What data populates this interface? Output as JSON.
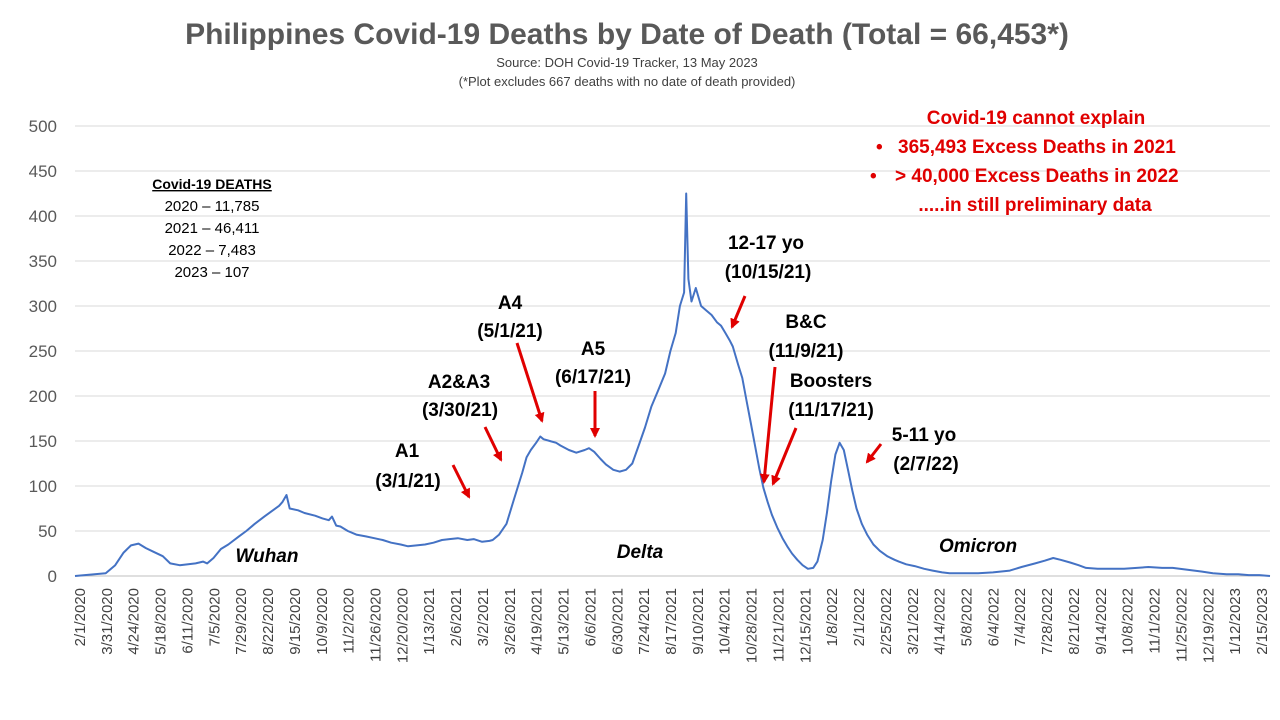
{
  "chart_data": {
    "type": "line",
    "title": "Philippines Covid-19 Deaths by Date of Death (Total = 66,453*)",
    "subtitle_1": "Source: DOH Covid-19 Tracker, 13 May 2023",
    "subtitle_2": "(*Plot excludes 667 deaths with no date of death provided)",
    "xlabel": "",
    "ylabel": "",
    "ylim": [
      0,
      500
    ],
    "yticks": [
      0,
      50,
      100,
      150,
      200,
      250,
      300,
      350,
      400,
      450,
      500
    ],
    "xlim": [
      "2020-02-01",
      "2023-03-07"
    ],
    "xticks": [
      "2/1/2020",
      "3/31/2020",
      "4/24/2020",
      "5/18/2020",
      "6/11/2020",
      "7/5/2020",
      "7/29/2020",
      "8/22/2020",
      "9/15/2020",
      "10/9/2020",
      "11/2/2020",
      "11/26/2020",
      "12/20/2020",
      "1/13/2021",
      "2/6/2021",
      "3/2/2021",
      "3/26/2021",
      "4/19/2021",
      "5/13/2021",
      "6/6/2021",
      "6/30/2021",
      "7/24/2021",
      "8/17/2021",
      "9/10/2021",
      "10/4/2021",
      "10/28/2021",
      "11/21/2021",
      "12/15/2021",
      "1/8/2022",
      "2/1/2022",
      "2/25/2022",
      "3/21/2022",
      "4/14/2022",
      "5/8/2022",
      "6/4/2022",
      "7/4/2022",
      "7/28/2022",
      "8/21/2022",
      "9/14/2022",
      "10/8/2022",
      "11/1/2022",
      "11/25/2022",
      "12/19/2022",
      "1/12/2023",
      "2/15/2023"
    ],
    "grid": true,
    "line_color": "#4472c4",
    "series": [
      {
        "points": [
          [
            "2020-02-01",
            0
          ],
          [
            "2020-03-01",
            3
          ],
          [
            "2020-03-10",
            12
          ],
          [
            "2020-03-18",
            26
          ],
          [
            "2020-03-25",
            34
          ],
          [
            "2020-04-01",
            36
          ],
          [
            "2020-04-08",
            31
          ],
          [
            "2020-04-15",
            27
          ],
          [
            "2020-04-24",
            22
          ],
          [
            "2020-05-01",
            14
          ],
          [
            "2020-05-10",
            12
          ],
          [
            "2020-05-18",
            13
          ],
          [
            "2020-05-25",
            14
          ],
          [
            "2020-06-01",
            16
          ],
          [
            "2020-06-05",
            14
          ],
          [
            "2020-06-11",
            20
          ],
          [
            "2020-06-18",
            30
          ],
          [
            "2020-06-25",
            35
          ],
          [
            "2020-07-05",
            44
          ],
          [
            "2020-07-12",
            50
          ],
          [
            "2020-07-20",
            58
          ],
          [
            "2020-07-29",
            66
          ],
          [
            "2020-08-05",
            72
          ],
          [
            "2020-08-12",
            78
          ],
          [
            "2020-08-15",
            82
          ],
          [
            "2020-08-19",
            90
          ],
          [
            "2020-08-22",
            75
          ],
          [
            "2020-08-30",
            73
          ],
          [
            "2020-09-05",
            70
          ],
          [
            "2020-09-15",
            67
          ],
          [
            "2020-09-22",
            64
          ],
          [
            "2020-09-28",
            62
          ],
          [
            "2020-10-01",
            66
          ],
          [
            "2020-10-05",
            56
          ],
          [
            "2020-10-09",
            55
          ],
          [
            "2020-10-16",
            50
          ],
          [
            "2020-10-24",
            46
          ],
          [
            "2020-11-02",
            44
          ],
          [
            "2020-11-10",
            42
          ],
          [
            "2020-11-18",
            40
          ],
          [
            "2020-11-26",
            37
          ],
          [
            "2020-12-05",
            35
          ],
          [
            "2020-12-12",
            33
          ],
          [
            "2020-12-20",
            34
          ],
          [
            "2020-12-28",
            35
          ],
          [
            "2021-01-05",
            37
          ],
          [
            "2021-01-13",
            40
          ],
          [
            "2021-01-20",
            41
          ],
          [
            "2021-01-28",
            42
          ],
          [
            "2021-02-06",
            40
          ],
          [
            "2021-02-12",
            41
          ],
          [
            "2021-02-20",
            38
          ],
          [
            "2021-02-27",
            39
          ],
          [
            "2021-03-02",
            40
          ],
          [
            "2021-03-08",
            46
          ],
          [
            "2021-03-15",
            58
          ],
          [
            "2021-03-22",
            85
          ],
          [
            "2021-03-26",
            100
          ],
          [
            "2021-03-30",
            115
          ],
          [
            "2021-04-03",
            132
          ],
          [
            "2021-04-07",
            140
          ],
          [
            "2021-04-12",
            148
          ],
          [
            "2021-04-16",
            155
          ],
          [
            "2021-04-19",
            152
          ],
          [
            "2021-04-25",
            150
          ],
          [
            "2021-05-01",
            148
          ],
          [
            "2021-05-05",
            145
          ],
          [
            "2021-05-13",
            140
          ],
          [
            "2021-05-20",
            137
          ],
          [
            "2021-05-28",
            140
          ],
          [
            "2021-06-01",
            142
          ],
          [
            "2021-06-06",
            138
          ],
          [
            "2021-06-12",
            130
          ],
          [
            "2021-06-17",
            124
          ],
          [
            "2021-06-24",
            118
          ],
          [
            "2021-06-30",
            116
          ],
          [
            "2021-07-06",
            118
          ],
          [
            "2021-07-12",
            125
          ],
          [
            "2021-07-18",
            145
          ],
          [
            "2021-07-24",
            165
          ],
          [
            "2021-07-30",
            188
          ],
          [
            "2021-08-05",
            205
          ],
          [
            "2021-08-12",
            225
          ],
          [
            "2021-08-17",
            250
          ],
          [
            "2021-08-22",
            270
          ],
          [
            "2021-08-26",
            300
          ],
          [
            "2021-08-30",
            315
          ],
          [
            "2021-09-01",
            425
          ],
          [
            "2021-09-03",
            330
          ],
          [
            "2021-09-06",
            305
          ],
          [
            "2021-09-10",
            320
          ],
          [
            "2021-09-15",
            300
          ],
          [
            "2021-09-20",
            295
          ],
          [
            "2021-09-25",
            290
          ],
          [
            "2021-09-30",
            282
          ],
          [
            "2021-10-04",
            278
          ],
          [
            "2021-10-08",
            270
          ],
          [
            "2021-10-12",
            262
          ],
          [
            "2021-10-15",
            255
          ],
          [
            "2021-10-20",
            235
          ],
          [
            "2021-10-24",
            220
          ],
          [
            "2021-10-28",
            195
          ],
          [
            "2021-11-01",
            170
          ],
          [
            "2021-11-05",
            145
          ],
          [
            "2021-11-09",
            120
          ],
          [
            "2021-11-13",
            98
          ],
          [
            "2021-11-17",
            82
          ],
          [
            "2021-11-21",
            68
          ],
          [
            "2021-11-26",
            54
          ],
          [
            "2021-12-01",
            42
          ],
          [
            "2021-12-06",
            32
          ],
          [
            "2021-12-10",
            25
          ],
          [
            "2021-12-15",
            18
          ],
          [
            "2021-12-20",
            12
          ],
          [
            "2021-12-25",
            8
          ],
          [
            "2021-12-30",
            9
          ],
          [
            "2022-01-03",
            16
          ],
          [
            "2022-01-08",
            40
          ],
          [
            "2022-01-12",
            70
          ],
          [
            "2022-01-16",
            105
          ],
          [
            "2022-01-20",
            135
          ],
          [
            "2022-01-24",
            148
          ],
          [
            "2022-01-28",
            140
          ],
          [
            "2022-02-01",
            118
          ],
          [
            "2022-02-05",
            95
          ],
          [
            "2022-02-09",
            75
          ],
          [
            "2022-02-14",
            58
          ],
          [
            "2022-02-19",
            46
          ],
          [
            "2022-02-25",
            35
          ],
          [
            "2022-03-03",
            28
          ],
          [
            "2022-03-10",
            22
          ],
          [
            "2022-03-17",
            18
          ],
          [
            "2022-03-21",
            16
          ],
          [
            "2022-03-28",
            13
          ],
          [
            "2022-04-05",
            11
          ],
          [
            "2022-04-14",
            8
          ],
          [
            "2022-04-22",
            6
          ],
          [
            "2022-05-01",
            4
          ],
          [
            "2022-05-08",
            3
          ],
          [
            "2022-05-20",
            3
          ],
          [
            "2022-06-04",
            3
          ],
          [
            "2022-06-18",
            4
          ],
          [
            "2022-07-04",
            6
          ],
          [
            "2022-07-15",
            10
          ],
          [
            "2022-07-28",
            14
          ],
          [
            "2022-08-06",
            17
          ],
          [
            "2022-08-14",
            20
          ],
          [
            "2022-08-21",
            18
          ],
          [
            "2022-08-30",
            15
          ],
          [
            "2022-09-07",
            12
          ],
          [
            "2022-09-14",
            9
          ],
          [
            "2022-09-25",
            8
          ],
          [
            "2022-10-08",
            8
          ],
          [
            "2022-10-20",
            8
          ],
          [
            "2022-11-01",
            9
          ],
          [
            "2022-11-12",
            10
          ],
          [
            "2022-11-25",
            9
          ],
          [
            "2022-12-05",
            9
          ],
          [
            "2022-12-19",
            7
          ],
          [
            "2023-01-01",
            5
          ],
          [
            "2023-01-12",
            3
          ],
          [
            "2023-01-25",
            2
          ],
          [
            "2023-02-05",
            2
          ],
          [
            "2023-02-15",
            1
          ],
          [
            "2023-02-25",
            1
          ],
          [
            "2023-03-07",
            0
          ]
        ]
      }
    ],
    "annotations": {
      "deaths_box": {
        "heading": "Covid-19 DEATHS",
        "lines": [
          "2020 – 11,785",
          "2021 – 46,411",
          "2022 – 7,483",
          "2023 – 107"
        ]
      },
      "excess_box": {
        "heading": "Covid-19 cannot explain",
        "bullets": [
          "365,493 Excess Deaths in 2021",
          "> 40,000 Excess Deaths in 2022"
        ],
        "footer": ".....in still preliminary data",
        "color": "#e00000"
      },
      "waves": [
        "Wuhan",
        "Delta",
        "Omicron"
      ],
      "events": [
        {
          "label": "A1",
          "date_label": "(3/1/21)"
        },
        {
          "label": "A2&A3",
          "date_label": "(3/30/21)"
        },
        {
          "label": "A4",
          "date_label": "(5/1/21)"
        },
        {
          "label": "A5",
          "date_label": "(6/17/21)"
        },
        {
          "label": "12-17 yo",
          "date_label": "(10/15/21)"
        },
        {
          "label": "B&C",
          "date_label": "(11/9/21)"
        },
        {
          "label": "Boosters",
          "date_label": "(11/17/21)"
        },
        {
          "label": "5-11 yo",
          "date_label": "(2/7/22)"
        }
      ],
      "arrow_color": "#e00000"
    }
  }
}
